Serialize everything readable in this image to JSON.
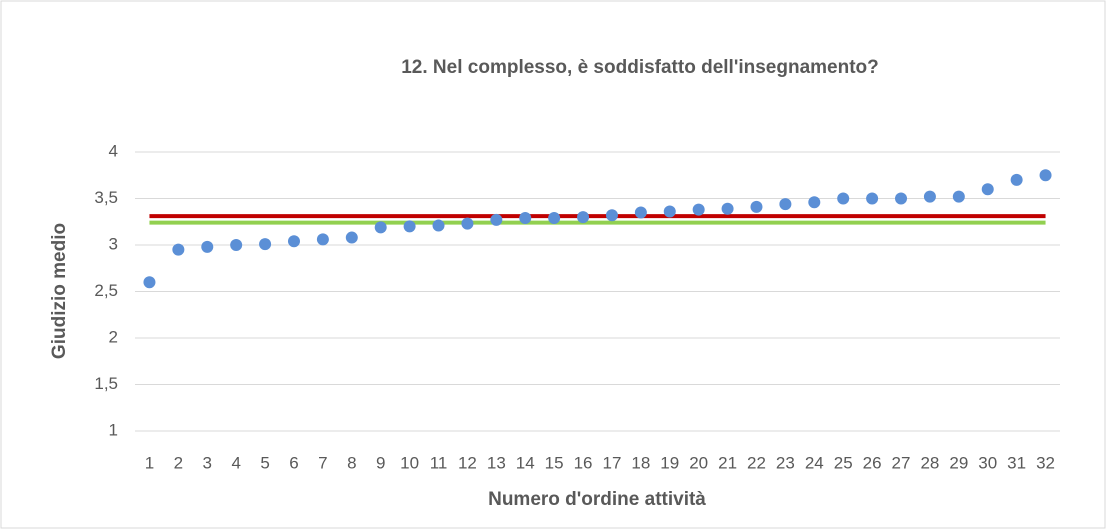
{
  "chart_data": {
    "type": "scatter",
    "title": "12. Nel complesso, è soddisfatto dell'insegnamento?",
    "x_label": "Numero d'ordine attività",
    "y_label": "Giudizio medio",
    "categories": [
      1,
      2,
      3,
      4,
      5,
      6,
      7,
      8,
      9,
      10,
      11,
      12,
      13,
      14,
      15,
      16,
      17,
      18,
      19,
      20,
      21,
      22,
      23,
      24,
      25,
      26,
      27,
      28,
      29,
      30,
      31,
      32
    ],
    "values": [
      2.6,
      2.95,
      2.98,
      3.0,
      3.01,
      3.04,
      3.06,
      3.08,
      3.19,
      3.2,
      3.21,
      3.23,
      3.27,
      3.29,
      3.29,
      3.3,
      3.32,
      3.35,
      3.36,
      3.38,
      3.39,
      3.41,
      3.44,
      3.46,
      3.5,
      3.5,
      3.5,
      3.52,
      3.52,
      3.6,
      3.7,
      3.75
    ],
    "color": "#5b8fd6",
    "reference_lines": [
      {
        "value": 3.31,
        "color": "#c00000"
      },
      {
        "value": 3.24,
        "color": "#92d050"
      }
    ],
    "ylim": [
      1,
      4
    ],
    "yticks": [
      1,
      {
        "value": 1.5,
        "label": "1,5"
      },
      2,
      {
        "value": 2.5,
        "label": "2,5"
      },
      3,
      {
        "value": 3.5,
        "label": "3,5"
      },
      4
    ],
    "grid": true
  }
}
